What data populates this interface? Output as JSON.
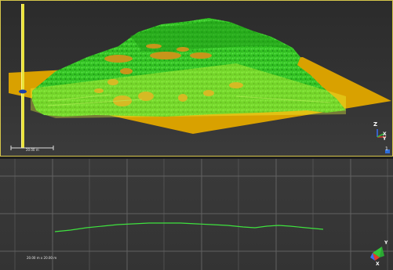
{
  "view3d": {
    "scale_label": "20.00 m",
    "axes": {
      "z": "Z",
      "x": "X",
      "y": "Y"
    },
    "corner_label": "1"
  },
  "profile": {
    "scale_label": "20.00 m x 20.00 m",
    "axes": {
      "y": "Y",
      "x": "X"
    }
  },
  "colors": {
    "cloud_green": "#2ecc1c",
    "plane_orange": "#d9a100",
    "section_yellow": "#d4cc2a",
    "profile_line": "#3fe23f",
    "grid": "#6a6a6a"
  }
}
